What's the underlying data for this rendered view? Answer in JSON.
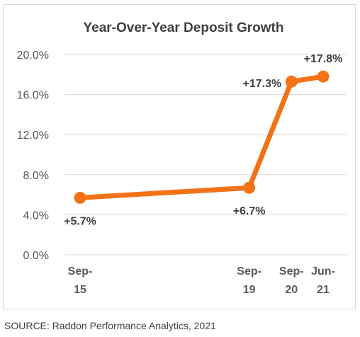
{
  "chart_data": {
    "type": "line",
    "title": "Year-Over-Year Deposit Growth",
    "xlabel": "",
    "ylabel": "",
    "x": [
      "Sep-15",
      "Sep-19",
      "Sep-20",
      "Jun-21"
    ],
    "x_labels": [
      [
        "Sep-",
        "15"
      ],
      [
        "Sep-",
        "19"
      ],
      [
        "Sep-",
        "20"
      ],
      [
        "Jun-",
        "21"
      ]
    ],
    "x_position_years": [
      2015.75,
      2019.75,
      2020.75,
      2021.5
    ],
    "series": [
      {
        "values": [
          5.7,
          6.7,
          17.3,
          17.8
        ],
        "color": "#f47216"
      }
    ],
    "data_labels": [
      "+5.7%",
      "+6.7%",
      "+17.3%",
      "+17.8%"
    ],
    "data_label_positions": [
      "below",
      "below",
      "left",
      "above"
    ],
    "ylim": [
      0,
      20
    ],
    "yticks": [
      0,
      4,
      8,
      12,
      16,
      20
    ],
    "ytick_labels": [
      "0.0%",
      "4.0%",
      "8.0%",
      "12.0%",
      "16.0%",
      "20.0%"
    ],
    "grid": true,
    "grid_color": "#d9d9d9",
    "legend": "none"
  },
  "source_note": "SOURCE: Raddon Performance Analytics, 2021"
}
